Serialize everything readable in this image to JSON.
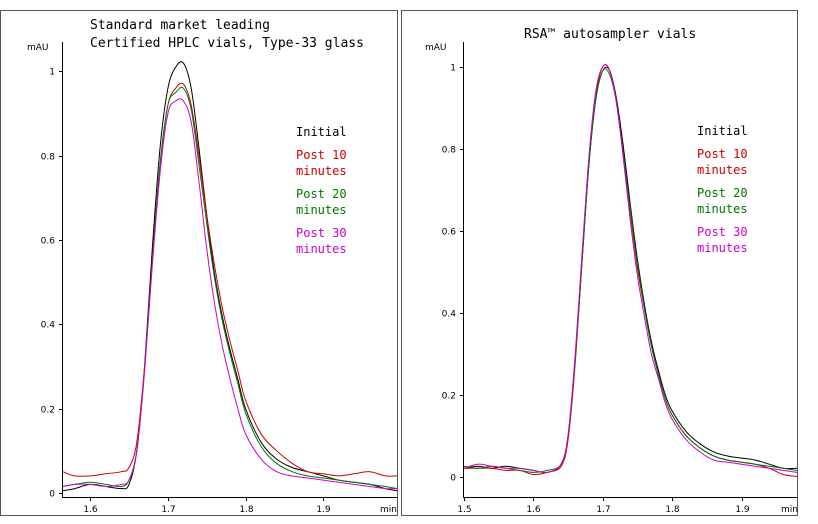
{
  "chart_data": [
    {
      "type": "line",
      "title_lines": [
        "Standard market leading",
        "Certified HPLC vials, Type-33 glass"
      ],
      "ylabel": "mAU",
      "xlabel": "min",
      "xlim": [
        1.565,
        1.995
      ],
      "ylim": [
        -0.01,
        1.07
      ],
      "xticks": [
        1.6,
        1.7,
        1.8,
        1.9
      ],
      "xtick_labels": [
        "1.6",
        "1.7",
        "1.8",
        "1.9"
      ],
      "yticks": [
        0,
        0.2,
        0.4,
        0.6,
        0.8,
        1
      ],
      "ytick_labels": [
        "0",
        "0.2",
        "0.4",
        "0.6",
        "0.8",
        "1"
      ],
      "legend": [
        {
          "lines": [
            "Initial"
          ],
          "color": "#000000"
        },
        {
          "lines": [
            "Post 10",
            "minutes"
          ],
          "color": "#cc0000"
        },
        {
          "lines": [
            "Post 20",
            "minutes"
          ],
          "color": "#007700"
        },
        {
          "lines": [
            "Post 30",
            "minutes"
          ],
          "color": "#cc00cc"
        }
      ],
      "series": [
        {
          "name": "Initial",
          "color": "#000000",
          "x": [
            1.565,
            1.58,
            1.6,
            1.62,
            1.64,
            1.65,
            1.66,
            1.67,
            1.68,
            1.69,
            1.7,
            1.71,
            1.72,
            1.73,
            1.74,
            1.75,
            1.76,
            1.77,
            1.78,
            1.79,
            1.8,
            1.82,
            1.84,
            1.86,
            1.88,
            1.9,
            1.92,
            1.94,
            1.96,
            1.98,
            1.995
          ],
          "y": [
            0.005,
            0.01,
            0.02,
            0.015,
            0.01,
            0.02,
            0.1,
            0.3,
            0.58,
            0.82,
            0.96,
            1.01,
            1.02,
            0.96,
            0.82,
            0.66,
            0.52,
            0.42,
            0.34,
            0.27,
            0.2,
            0.12,
            0.08,
            0.06,
            0.05,
            0.04,
            0.03,
            0.025,
            0.02,
            0.01,
            0.005
          ]
        },
        {
          "name": "Post 10 minutes",
          "color": "#cc0000",
          "x": [
            1.565,
            1.58,
            1.6,
            1.62,
            1.64,
            1.65,
            1.66,
            1.67,
            1.68,
            1.69,
            1.7,
            1.71,
            1.72,
            1.73,
            1.74,
            1.75,
            1.76,
            1.77,
            1.78,
            1.79,
            1.8,
            1.82,
            1.84,
            1.86,
            1.88,
            1.9,
            1.92,
            1.94,
            1.96,
            1.98,
            1.995
          ],
          "y": [
            0.05,
            0.04,
            0.04,
            0.045,
            0.05,
            0.06,
            0.12,
            0.3,
            0.55,
            0.78,
            0.92,
            0.96,
            0.97,
            0.92,
            0.8,
            0.66,
            0.54,
            0.44,
            0.36,
            0.29,
            0.22,
            0.14,
            0.1,
            0.07,
            0.05,
            0.045,
            0.04,
            0.045,
            0.05,
            0.04,
            0.04
          ]
        },
        {
          "name": "Post 20 minutes",
          "color": "#007700",
          "x": [
            1.565,
            1.58,
            1.6,
            1.62,
            1.64,
            1.65,
            1.66,
            1.67,
            1.68,
            1.69,
            1.7,
            1.71,
            1.72,
            1.73,
            1.74,
            1.75,
            1.76,
            1.77,
            1.78,
            1.79,
            1.8,
            1.82,
            1.84,
            1.86,
            1.88,
            1.9,
            1.92,
            1.94,
            1.96,
            1.98,
            1.995
          ],
          "y": [
            0.015,
            0.02,
            0.025,
            0.02,
            0.015,
            0.03,
            0.1,
            0.29,
            0.55,
            0.78,
            0.92,
            0.95,
            0.96,
            0.91,
            0.78,
            0.64,
            0.51,
            0.41,
            0.33,
            0.26,
            0.19,
            0.11,
            0.07,
            0.05,
            0.04,
            0.035,
            0.03,
            0.025,
            0.02,
            0.015,
            0.01
          ]
        },
        {
          "name": "Post 30 minutes",
          "color": "#cc00cc",
          "x": [
            1.565,
            1.58,
            1.6,
            1.62,
            1.64,
            1.65,
            1.66,
            1.67,
            1.68,
            1.69,
            1.7,
            1.71,
            1.72,
            1.73,
            1.74,
            1.75,
            1.76,
            1.77,
            1.78,
            1.79,
            1.8,
            1.82,
            1.84,
            1.86,
            1.88,
            1.9,
            1.92,
            1.94,
            1.96,
            1.98,
            1.995
          ],
          "y": [
            0.015,
            0.02,
            0.02,
            0.015,
            0.02,
            0.03,
            0.1,
            0.29,
            0.54,
            0.76,
            0.9,
            0.93,
            0.93,
            0.88,
            0.74,
            0.58,
            0.45,
            0.35,
            0.27,
            0.2,
            0.14,
            0.08,
            0.05,
            0.04,
            0.035,
            0.03,
            0.025,
            0.02,
            0.015,
            0.01,
            0.01
          ]
        }
      ]
    },
    {
      "type": "line",
      "title_lines": [
        "RSA™ autosampler vials"
      ],
      "ylabel": "mAU",
      "xlabel": "min",
      "xlim": [
        1.5,
        1.98
      ],
      "ylim": [
        -0.05,
        1.06
      ],
      "xticks": [
        1.5,
        1.6,
        1.7,
        1.8,
        1.9
      ],
      "xtick_labels": [
        "1.5",
        "1.6",
        "1.7",
        "1.8",
        "1.9"
      ],
      "yticks": [
        0,
        0.2,
        0.4,
        0.6,
        0.8,
        1
      ],
      "ytick_labels": [
        "0",
        "0.2",
        "0.4",
        "0.6",
        "0.8",
        "1"
      ],
      "legend": [
        {
          "lines": [
            "Initial"
          ],
          "color": "#000000"
        },
        {
          "lines": [
            "Post 10",
            "minutes"
          ],
          "color": "#cc0000"
        },
        {
          "lines": [
            "Post 20",
            "minutes"
          ],
          "color": "#007700"
        },
        {
          "lines": [
            "Post 30",
            "minutes"
          ],
          "color": "#cc00cc"
        }
      ],
      "series": [
        {
          "name": "Initial",
          "color": "#000000",
          "x": [
            1.5,
            1.52,
            1.54,
            1.56,
            1.58,
            1.6,
            1.62,
            1.64,
            1.65,
            1.66,
            1.67,
            1.68,
            1.69,
            1.7,
            1.71,
            1.72,
            1.73,
            1.74,
            1.75,
            1.76,
            1.77,
            1.78,
            1.79,
            1.8,
            1.82,
            1.84,
            1.86,
            1.88,
            1.9,
            1.92,
            1.94,
            1.96,
            1.98
          ],
          "y": [
            0.02,
            0.025,
            0.02,
            0.025,
            0.02,
            0.015,
            0.01,
            0.03,
            0.1,
            0.28,
            0.52,
            0.76,
            0.92,
            0.99,
            0.99,
            0.92,
            0.8,
            0.66,
            0.53,
            0.42,
            0.33,
            0.26,
            0.2,
            0.16,
            0.11,
            0.08,
            0.06,
            0.05,
            0.045,
            0.04,
            0.03,
            0.02,
            0.02
          ]
        },
        {
          "name": "Post 10 minutes",
          "color": "#cc0000",
          "x": [
            1.5,
            1.52,
            1.54,
            1.56,
            1.58,
            1.6,
            1.62,
            1.64,
            1.65,
            1.66,
            1.67,
            1.68,
            1.69,
            1.7,
            1.71,
            1.72,
            1.73,
            1.74,
            1.75,
            1.76,
            1.77,
            1.78,
            1.79,
            1.8,
            1.82,
            1.84,
            1.86,
            1.88,
            1.9,
            1.92,
            1.94,
            1.96,
            1.98
          ],
          "y": [
            0.02,
            0.02,
            0.02,
            0.015,
            0.015,
            0.005,
            0.01,
            0.025,
            0.09,
            0.27,
            0.52,
            0.77,
            0.93,
            1.0,
            0.99,
            0.91,
            0.78,
            0.64,
            0.51,
            0.41,
            0.32,
            0.25,
            0.19,
            0.15,
            0.1,
            0.07,
            0.05,
            0.04,
            0.035,
            0.03,
            0.02,
            0.005,
            0.0
          ]
        },
        {
          "name": "Post 20 minutes",
          "color": "#007700",
          "x": [
            1.5,
            1.52,
            1.54,
            1.56,
            1.58,
            1.6,
            1.62,
            1.64,
            1.65,
            1.66,
            1.67,
            1.68,
            1.69,
            1.7,
            1.71,
            1.72,
            1.73,
            1.74,
            1.75,
            1.76,
            1.77,
            1.78,
            1.79,
            1.8,
            1.82,
            1.84,
            1.86,
            1.88,
            1.9,
            1.92,
            1.94,
            1.96,
            1.98
          ],
          "y": [
            0.025,
            0.02,
            0.025,
            0.02,
            0.015,
            0.01,
            0.015,
            0.03,
            0.1,
            0.28,
            0.52,
            0.76,
            0.92,
            0.99,
            0.98,
            0.91,
            0.78,
            0.65,
            0.52,
            0.41,
            0.32,
            0.25,
            0.19,
            0.15,
            0.1,
            0.07,
            0.05,
            0.04,
            0.035,
            0.03,
            0.025,
            0.02,
            0.015
          ]
        },
        {
          "name": "Post 30 minutes",
          "color": "#cc00cc",
          "x": [
            1.5,
            1.52,
            1.54,
            1.56,
            1.58,
            1.6,
            1.62,
            1.64,
            1.65,
            1.66,
            1.67,
            1.68,
            1.69,
            1.7,
            1.71,
            1.72,
            1.73,
            1.74,
            1.75,
            1.76,
            1.77,
            1.78,
            1.79,
            1.8,
            1.82,
            1.84,
            1.86,
            1.88,
            1.9,
            1.92,
            1.94,
            1.96,
            1.98
          ],
          "y": [
            0.02,
            0.03,
            0.025,
            0.02,
            0.02,
            0.015,
            0.01,
            0.03,
            0.1,
            0.29,
            0.54,
            0.78,
            0.94,
            1.0,
            0.99,
            0.91,
            0.77,
            0.62,
            0.49,
            0.39,
            0.3,
            0.24,
            0.18,
            0.14,
            0.09,
            0.06,
            0.04,
            0.035,
            0.03,
            0.025,
            0.02,
            0.015,
            0.01
          ]
        }
      ]
    }
  ]
}
